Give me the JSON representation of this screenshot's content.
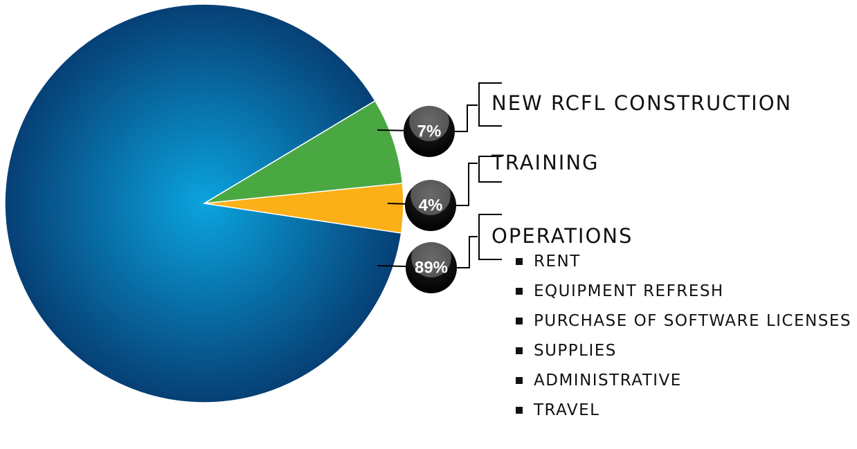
{
  "chart_data": {
    "type": "pie",
    "categories": [
      "NEW RCFL CONSTRUCTION",
      "TRAINING",
      "OPERATIONS"
    ],
    "values": [
      7,
      4,
      89
    ],
    "value_labels": [
      "7%",
      "4%",
      "89%"
    ],
    "colors": [
      "#4aa843",
      "#fbb018",
      "#0a5a99"
    ],
    "sub_items": [
      "RENT",
      "EQUIPMENT REFRESH",
      "PURCHASE OF SOFTWARE LICENSES",
      "SUPPLIES",
      "ADMINISTRATIVE",
      "TRAVEL"
    ]
  }
}
